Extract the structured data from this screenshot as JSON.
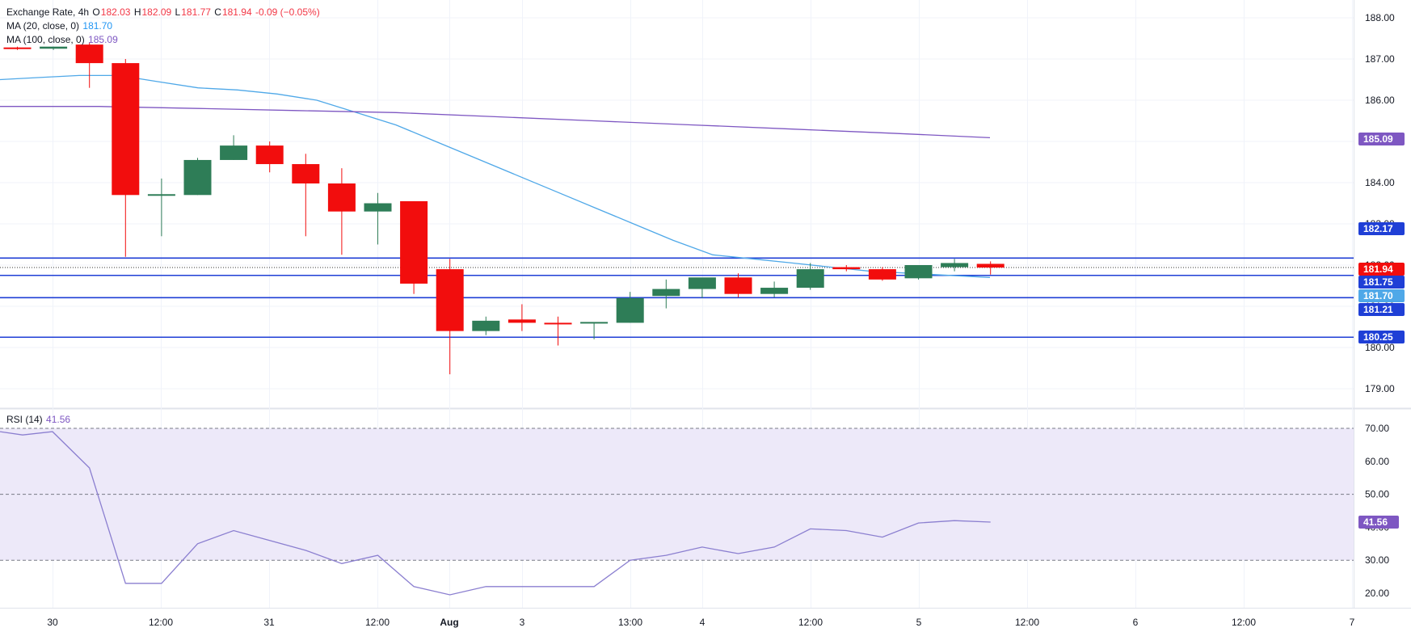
{
  "legend": {
    "symbol": "Exchange Rate, 4h",
    "o_label": "O",
    "o": "182.03",
    "h_label": "H",
    "h": "182.09",
    "l_label": "L",
    "l": "181.77",
    "c_label": "C",
    "c": "181.94",
    "change": "-0.09 (−0.05%)",
    "ma20_label": "MA (20, close, 0)",
    "ma20_value": "181.70",
    "ma100_label": "MA (100, close, 0)",
    "ma100_value": "185.09",
    "rsi_label": "RSI (14)",
    "rsi_value": "41.56"
  },
  "colors": {
    "up": "#2e7d57",
    "down": "#f20d0d",
    "ma20": "#4fa8e8",
    "ma100": "#7e57c2",
    "rsi": "#8b7fd0",
    "hline": "#1f3fd6",
    "grid": "#f0f3fa",
    "rsi_band": "#ede9f9"
  },
  "chart_data": [
    {
      "type": "candlestick",
      "title": "Exchange Rate, 4h",
      "interval": "4h",
      "ylim": [
        178.5,
        188.3
      ],
      "y_ticks": [
        "179.00",
        "180.00",
        "181.00",
        "182.00",
        "183.00",
        "184.00",
        "185.00",
        "186.00",
        "187.00",
        "188.00"
      ],
      "x_ticks": [
        "30",
        "12:00",
        "31",
        "12:00",
        "Aug",
        "3",
        "13:00",
        "4",
        "12:00",
        "5",
        "12:00",
        "6",
        "12:00",
        "7"
      ],
      "candles": [
        {
          "i": 0,
          "o": 187.28,
          "h": 187.3,
          "l": 187.22,
          "c": 187.25
        },
        {
          "i": 1,
          "o": 187.25,
          "h": 187.3,
          "l": 187.22,
          "c": 187.3
        },
        {
          "i": 2,
          "o": 187.35,
          "h": 187.4,
          "l": 186.3,
          "c": 186.9
        },
        {
          "i": 3,
          "o": 186.9,
          "h": 187.0,
          "l": 182.2,
          "c": 183.7
        },
        {
          "i": 4,
          "o": 183.7,
          "h": 184.1,
          "l": 182.7,
          "c": 183.72
        },
        {
          "i": 5,
          "o": 183.7,
          "h": 184.6,
          "l": 183.7,
          "c": 184.55
        },
        {
          "i": 6,
          "o": 184.55,
          "h": 185.15,
          "l": 184.55,
          "c": 184.9
        },
        {
          "i": 7,
          "o": 184.9,
          "h": 185.0,
          "l": 184.25,
          "c": 184.45
        },
        {
          "i": 8,
          "o": 184.45,
          "h": 184.7,
          "l": 182.7,
          "c": 183.98
        },
        {
          "i": 9,
          "o": 183.98,
          "h": 184.35,
          "l": 182.25,
          "c": 183.3
        },
        {
          "i": 10,
          "o": 183.3,
          "h": 183.75,
          "l": 182.5,
          "c": 183.5
        },
        {
          "i": 11,
          "o": 183.55,
          "h": 183.55,
          "l": 181.3,
          "c": 181.55
        },
        {
          "i": 12,
          "o": 181.9,
          "h": 182.15,
          "l": 179.35,
          "c": 180.4
        },
        {
          "i": 13,
          "o": 180.4,
          "h": 180.75,
          "l": 180.3,
          "c": 180.65
        },
        {
          "i": 14,
          "o": 180.68,
          "h": 181.05,
          "l": 180.4,
          "c": 180.6
        },
        {
          "i": 15,
          "o": 180.6,
          "h": 180.75,
          "l": 180.05,
          "c": 180.58
        },
        {
          "i": 16,
          "o": 180.6,
          "h": 180.6,
          "l": 180.2,
          "c": 180.62
        },
        {
          "i": 17,
          "o": 180.6,
          "h": 181.35,
          "l": 180.6,
          "c": 181.2
        },
        {
          "i": 18,
          "o": 181.25,
          "h": 181.65,
          "l": 180.95,
          "c": 181.42
        },
        {
          "i": 19,
          "o": 181.42,
          "h": 181.68,
          "l": 181.2,
          "c": 181.7
        },
        {
          "i": 20,
          "o": 181.7,
          "h": 181.8,
          "l": 181.22,
          "c": 181.3
        },
        {
          "i": 21,
          "o": 181.3,
          "h": 181.6,
          "l": 181.22,
          "c": 181.45
        },
        {
          "i": 22,
          "o": 181.45,
          "h": 182.05,
          "l": 181.4,
          "c": 181.9
        },
        {
          "i": 23,
          "o": 181.95,
          "h": 182.0,
          "l": 181.85,
          "c": 181.9
        },
        {
          "i": 24,
          "o": 181.9,
          "h": 181.95,
          "l": 181.62,
          "c": 181.65
        },
        {
          "i": 25,
          "o": 181.68,
          "h": 182.0,
          "l": 181.65,
          "c": 182.0
        },
        {
          "i": 26,
          "o": 181.95,
          "h": 182.15,
          "l": 181.85,
          "c": 182.05
        },
        {
          "i": 27,
          "o": 182.03,
          "h": 182.09,
          "l": 181.77,
          "c": 181.94
        }
      ],
      "series": [
        {
          "name": "MA (20, close, 0)",
          "values": [
            186.5,
            186.55,
            186.6,
            186.6,
            186.45,
            186.3,
            186.25,
            186.15,
            186.0,
            185.7,
            185.4,
            185.0,
            184.6,
            184.2,
            183.8,
            183.4,
            183.0,
            182.6,
            182.25,
            182.15,
            182.05,
            181.95,
            181.85,
            181.8,
            181.75,
            181.7
          ]
        },
        {
          "name": "MA (100, close, 0)",
          "values": [
            185.85,
            185.85,
            185.8,
            185.75,
            185.7,
            185.6,
            185.5,
            185.4,
            185.3,
            185.2,
            185.09
          ]
        }
      ],
      "horizontal_lines": [
        182.17,
        181.75,
        181.21,
        180.25
      ],
      "price_tags": [
        {
          "label": "185.09",
          "kind": "ma100"
        },
        {
          "label": "182.17",
          "kind": "hline"
        },
        {
          "label": "181.94",
          "kind": "last"
        },
        {
          "label": "181.75",
          "kind": "hline"
        },
        {
          "label": "181.70",
          "kind": "ma20"
        },
        {
          "label": "181.21",
          "kind": "hline"
        },
        {
          "label": "180.25",
          "kind": "hline"
        }
      ]
    },
    {
      "type": "line",
      "title": "RSI (14)",
      "ylim": [
        15,
        72
      ],
      "y_ticks": [
        "20.00",
        "30.00",
        "40.00",
        "50.00",
        "60.00",
        "70.00"
      ],
      "band": [
        30,
        70
      ],
      "dashed_levels": [
        30,
        50,
        70
      ],
      "series": [
        {
          "name": "RSI (14)",
          "values": [
            69,
            68,
            69,
            58,
            23,
            23,
            35,
            39,
            36,
            33,
            29,
            31.5,
            22,
            19.5,
            22,
            22,
            22,
            22,
            30,
            31.5,
            34,
            32,
            34,
            39.5,
            39,
            37,
            41.3,
            42,
            41.56
          ]
        }
      ],
      "last_tag": "41.56"
    }
  ]
}
